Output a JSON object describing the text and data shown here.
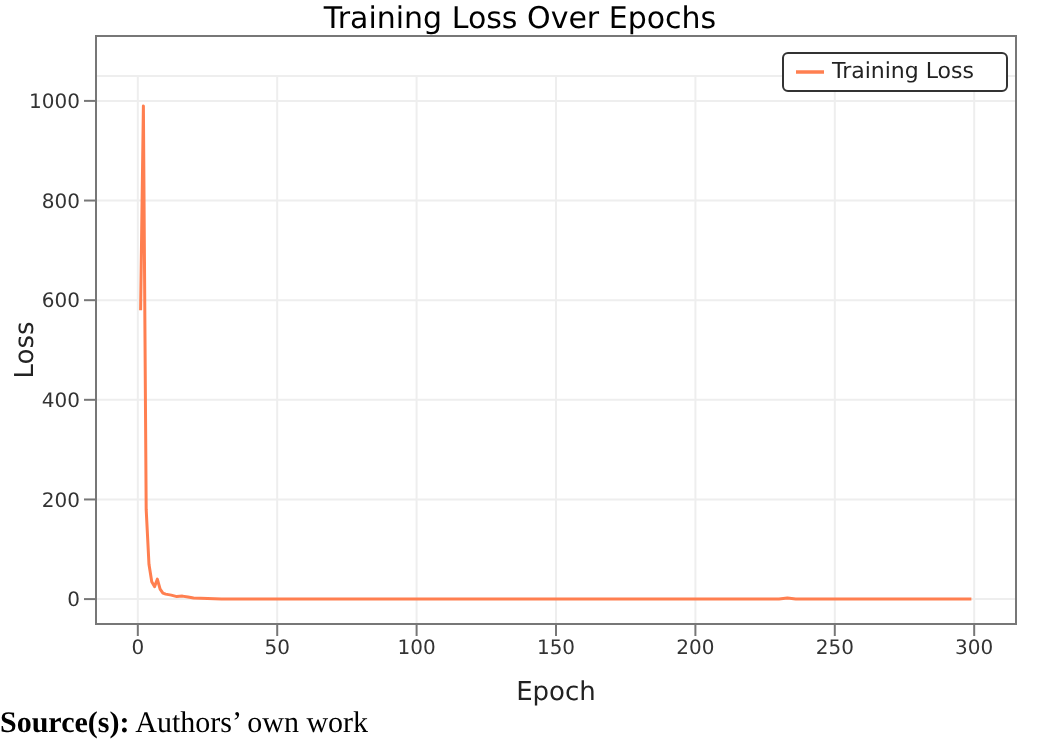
{
  "chart_data": {
    "type": "line",
    "title": "Training Loss Over Epochs",
    "xlabel": "Epoch",
    "ylabel": "Loss",
    "x": [
      1,
      2,
      3,
      4,
      5,
      6,
      7,
      8,
      9,
      10,
      12,
      14,
      16,
      18,
      20,
      25,
      30,
      50,
      100,
      150,
      200,
      230,
      233,
      236,
      250,
      299
    ],
    "series": [
      {
        "name": "Training Loss",
        "color": "#ff7f50",
        "values": [
          580,
          990,
          180,
          70,
          35,
          25,
          40,
          20,
          12,
          10,
          8,
          5,
          6,
          4,
          2,
          1,
          0,
          0,
          0,
          0,
          0,
          0,
          2,
          0,
          0,
          0
        ]
      }
    ],
    "xlim": [
      -15,
      315
    ],
    "xticks": [
      0,
      50,
      100,
      150,
      200,
      250,
      300
    ],
    "ylim": [
      -50,
      1050
    ],
    "yticks": [
      0,
      200,
      400,
      600,
      800,
      1000
    ],
    "grid": true,
    "legend": "top right",
    "marker": "none",
    "line_style": "solid",
    "annotations": [
      "Source(s): Authors’ own work"
    ]
  }
}
